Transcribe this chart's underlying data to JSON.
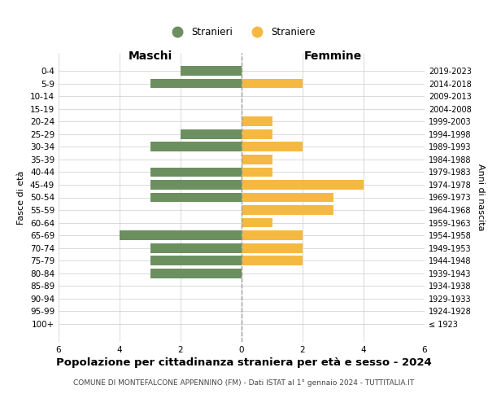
{
  "age_groups": [
    "100+",
    "95-99",
    "90-94",
    "85-89",
    "80-84",
    "75-79",
    "70-74",
    "65-69",
    "60-64",
    "55-59",
    "50-54",
    "45-49",
    "40-44",
    "35-39",
    "30-34",
    "25-29",
    "20-24",
    "15-19",
    "10-14",
    "5-9",
    "0-4"
  ],
  "birth_years": [
    "≤ 1923",
    "1924-1928",
    "1929-1933",
    "1934-1938",
    "1939-1943",
    "1944-1948",
    "1949-1953",
    "1954-1958",
    "1959-1963",
    "1964-1968",
    "1969-1973",
    "1974-1978",
    "1979-1983",
    "1984-1988",
    "1989-1993",
    "1994-1998",
    "1999-2003",
    "2004-2008",
    "2009-2013",
    "2014-2018",
    "2019-2023"
  ],
  "maschi": [
    0,
    0,
    0,
    0,
    3,
    3,
    3,
    4,
    0,
    0,
    3,
    3,
    3,
    0,
    3,
    2,
    0,
    0,
    0,
    3,
    2
  ],
  "femmine": [
    0,
    0,
    0,
    0,
    0,
    2,
    2,
    2,
    1,
    3,
    3,
    4,
    1,
    1,
    2,
    1,
    1,
    0,
    0,
    2,
    0
  ],
  "color_maschi": "#6b8f5e",
  "color_femmine": "#f5b942",
  "title": "Popolazione per cittadinanza straniera per età e sesso - 2024",
  "subtitle": "COMUNE DI MONTEFALCONE APPENNINO (FM) - Dati ISTAT al 1° gennaio 2024 - TUTTITALIA.IT",
  "ylabel_left": "Fasce di età",
  "ylabel_right": "Anni di nascita",
  "xlabel_left": "Maschi",
  "xlabel_top_right": "Femmine",
  "legend_stranieri": "Stranieri",
  "legend_straniere": "Straniere",
  "xlim": 6,
  "background_color": "#ffffff",
  "grid_color": "#cccccc",
  "bar_height": 0.75
}
